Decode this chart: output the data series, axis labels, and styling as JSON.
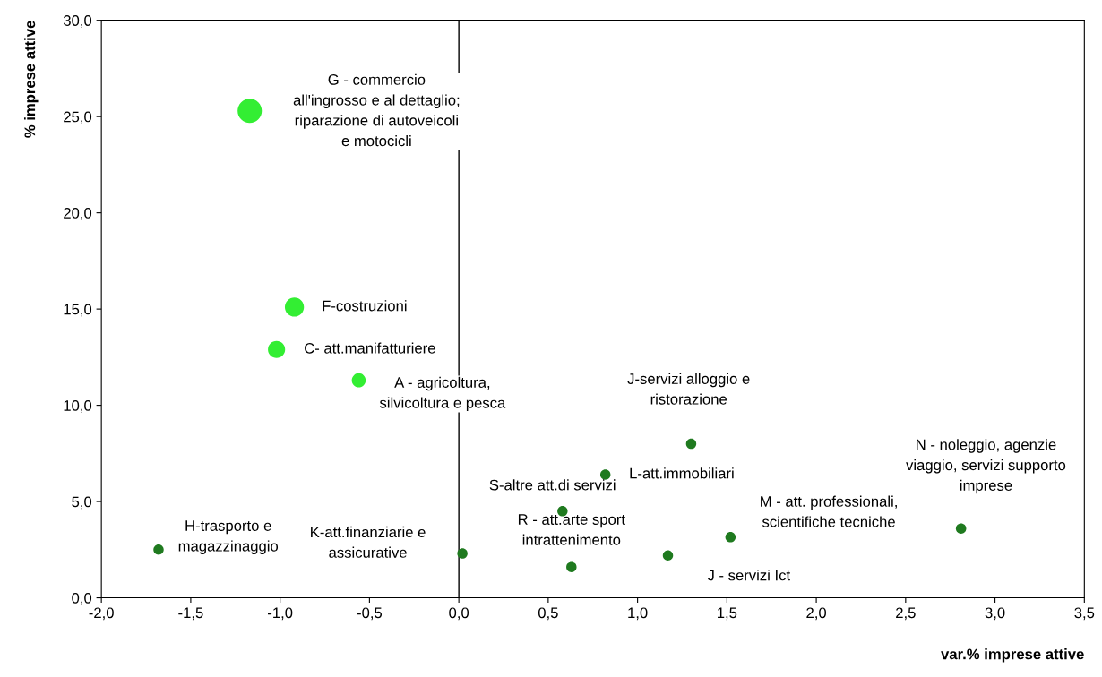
{
  "chart_data": {
    "type": "bubble",
    "xlabel": "var.% imprese attive",
    "ylabel": "% imprese attive",
    "series": [
      {
        "color": "#33ee33",
        "x": [
          -1.17,
          -0.92,
          -1.02,
          -0.56
        ],
        "values": [
          25.3,
          15.1,
          12.9,
          11.3
        ],
        "sizes": [
          1,
          0.62,
          0.5,
          0.33
        ]
      },
      {
        "color": "#1f7a1f",
        "x": [
          1.3,
          0.82,
          0.58,
          2.81,
          1.52,
          -1.68,
          0.02,
          0.63,
          1.17
        ],
        "values": [
          8.0,
          6.4,
          4.5,
          3.6,
          3.15,
          2.5,
          2.3,
          1.6,
          2.2
        ],
        "sizes": [
          0.18,
          0.18,
          0.18,
          0.18,
          0.18,
          0.18,
          0.18,
          0.18,
          0.18
        ]
      }
    ],
    "annotations": [
      "G - commercio\nall'ingrosso e al dettaglio;\nriparazione di autoveicoli\ne motocicli",
      {
        "text": "F-costruzioni",
        "x": -0.92,
        "y": 15.1
      },
      {
        "text": "C- att.manifatturiere",
        "x": -1.02,
        "y": 12.9
      },
      "A - agricoltura,\nsilvicoltura e pesca",
      {
        "text": "J-servizi alloggio e\nristorazione",
        "x": 1.3,
        "y": 8.0
      },
      {
        "text": "L-att.immobiliari",
        "x": 0.82,
        "y": 6.4
      },
      {
        "text": "S-altre att.di servizi",
        "x": 0.58,
        "y": 4.5
      },
      {
        "text": "N - noleggio, agenzie\nviaggio, servizi supporto\nimprese",
        "x": 2.81,
        "y": 3.6
      },
      "M - att. professionali,\nscientifiche tecniche",
      "H-trasporto e\nmagazzinaggio",
      {
        "text": "K-att.finanziarie e\nassicurative",
        "x": 0.02,
        "y": 2.3
      },
      {
        "text": "R - att.arte sport\nintrattenimento",
        "x": 0.63,
        "y": 1.6
      },
      {
        "text": "J - servizi Ict",
        "x": 1.17,
        "y": 2.2
      }
    ],
    "ref_lines": [
      {
        "axis": "x",
        "value": 0,
        "color": "#000000"
      }
    ],
    "xlim": [
      -2,
      3.5
    ],
    "ylim": [
      0,
      30
    ],
    "xticks": [
      {
        "value": -2,
        "label": "-2,0"
      },
      {
        "value": -1.5,
        "label": "-1,5"
      },
      {
        "value": -1,
        "label": "-1,0"
      },
      {
        "value": -0.5,
        "label": "-0,5"
      },
      {
        "value": 0,
        "label": "0,0"
      },
      {
        "value": 0.5,
        "label": "0,5"
      },
      {
        "value": 1,
        "label": "1,0"
      },
      {
        "value": 1.5,
        "label": "1,5"
      },
      {
        "value": 2,
        "label": "2,0"
      },
      {
        "value": 2.5,
        "label": "2,5"
      },
      {
        "value": 3,
        "label": "3,0"
      },
      {
        "value": 3.5,
        "label": "3,5"
      }
    ],
    "yticks": [
      {
        "value": 0,
        "label": "0,0"
      },
      {
        "value": 5,
        "label": "5,0"
      },
      {
        "value": 10,
        "label": "10,0"
      },
      {
        "value": 15,
        "label": "15,0"
      },
      {
        "value": 20,
        "label": "20,0"
      },
      {
        "value": 25,
        "label": "25,0"
      },
      {
        "value": 30,
        "label": "30,0"
      }
    ],
    "grid": false,
    "legend": false
  }
}
